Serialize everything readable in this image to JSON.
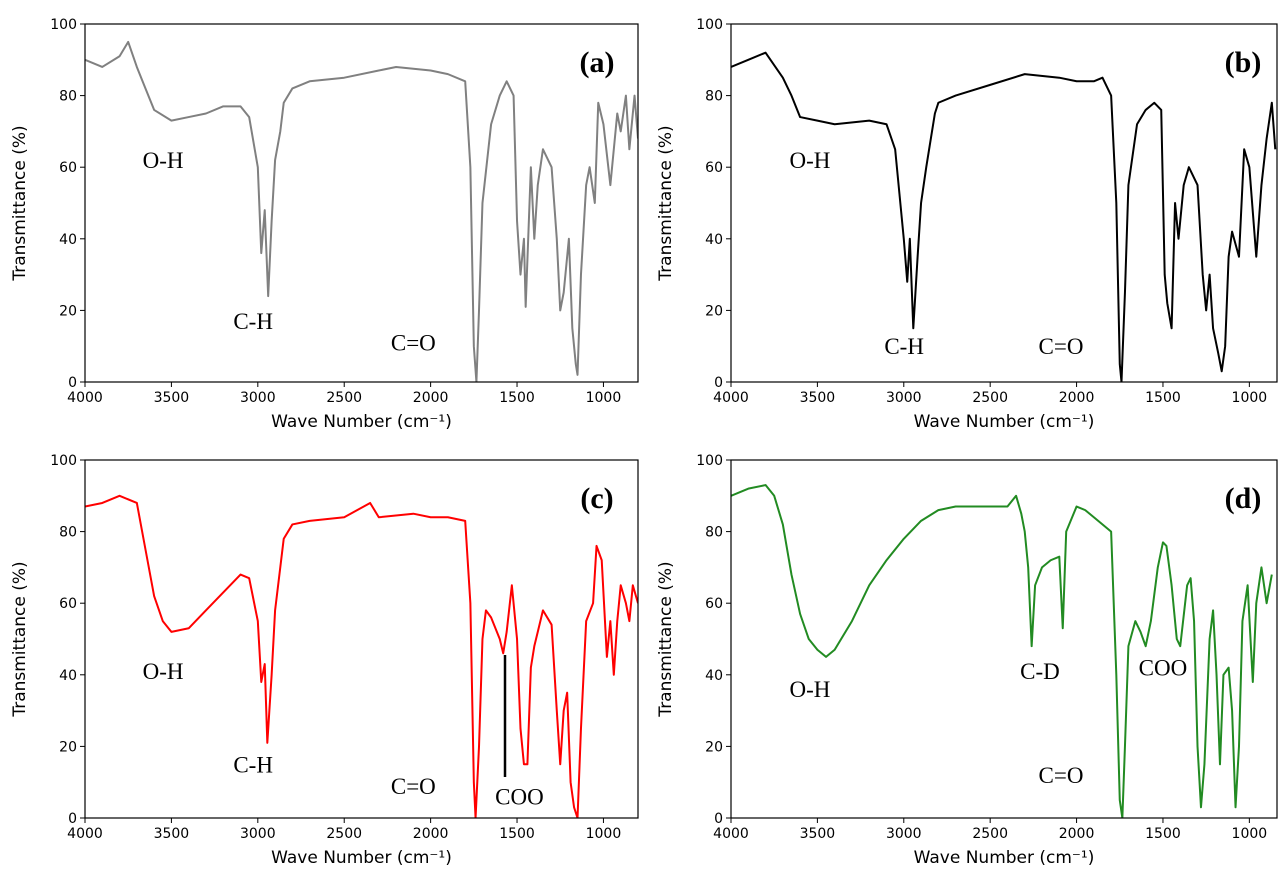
{
  "chart_data": [
    {
      "type": "line",
      "panel_label": "(a)",
      "xlabel": "Wave Number (cm⁻¹)",
      "ylabel": "Transmittance (%)",
      "color": "#808080",
      "xlim": [
        4000,
        800
      ],
      "ylim": [
        0,
        100
      ],
      "xticks": [
        4000,
        3500,
        3000,
        2500,
        2000,
        1500,
        1000
      ],
      "yticks": [
        0,
        20,
        40,
        60,
        80,
        100
      ],
      "x": [
        4000,
        3900,
        3800,
        3750,
        3700,
        3650,
        3600,
        3500,
        3400,
        3300,
        3200,
        3100,
        3050,
        3000,
        2980,
        2960,
        2940,
        2920,
        2900,
        2870,
        2850,
        2800,
        2700,
        2500,
        2300,
        2200,
        2000,
        1900,
        1800,
        1770,
        1750,
        1735,
        1720,
        1700,
        1650,
        1600,
        1560,
        1520,
        1500,
        1480,
        1460,
        1450,
        1420,
        1400,
        1380,
        1350,
        1300,
        1270,
        1250,
        1230,
        1200,
        1180,
        1160,
        1150,
        1130,
        1100,
        1080,
        1050,
        1030,
        1000,
        960,
        920,
        900,
        870,
        850,
        820,
        800
      ],
      "values": [
        90,
        88,
        91,
        95,
        88,
        82,
        76,
        73,
        74,
        75,
        77,
        77,
        74,
        60,
        36,
        48,
        24,
        45,
        62,
        70,
        78,
        82,
        84,
        85,
        87,
        88,
        87,
        86,
        84,
        60,
        10,
        0,
        20,
        50,
        72,
        80,
        84,
        80,
        45,
        30,
        40,
        21,
        60,
        40,
        55,
        65,
        60,
        40,
        20,
        25,
        40,
        15,
        5,
        2,
        30,
        55,
        60,
        50,
        78,
        72,
        55,
        75,
        70,
        80,
        65,
        80,
        68
      ],
      "annotations": [
        {
          "text": "O-H",
          "x": 3548,
          "y": 62
        },
        {
          "text": "C-H",
          "x": 3027,
          "y": 17
        },
        {
          "text": "C=O",
          "x": 2100,
          "y": 11
        }
      ]
    },
    {
      "type": "line",
      "panel_label": "(b)",
      "xlabel": "Wave Number (cm⁻¹)",
      "ylabel": "Transmittance (%)",
      "color": "#000000",
      "xlim": [
        4000,
        840
      ],
      "ylim": [
        0,
        100
      ],
      "xticks": [
        4000,
        3500,
        3000,
        2500,
        2000,
        1500,
        1000
      ],
      "yticks": [
        0,
        20,
        40,
        60,
        80,
        100
      ],
      "x": [
        4000,
        3900,
        3800,
        3700,
        3650,
        3600,
        3500,
        3400,
        3200,
        3100,
        3050,
        3000,
        2980,
        2965,
        2945,
        2920,
        2900,
        2870,
        2850,
        2820,
        2800,
        2700,
        2500,
        2300,
        2100,
        2000,
        1900,
        1850,
        1800,
        1770,
        1750,
        1740,
        1720,
        1700,
        1650,
        1600,
        1550,
        1510,
        1490,
        1475,
        1450,
        1430,
        1410,
        1380,
        1350,
        1300,
        1270,
        1250,
        1230,
        1210,
        1180,
        1160,
        1140,
        1120,
        1100,
        1060,
        1030,
        1000,
        960,
        930,
        900,
        870,
        850
      ],
      "values": [
        88,
        90,
        92,
        85,
        80,
        74,
        73,
        72,
        73,
        72,
        65,
        40,
        28,
        40,
        15,
        35,
        50,
        60,
        66,
        75,
        78,
        80,
        83,
        86,
        85,
        84,
        84,
        85,
        80,
        50,
        5,
        0,
        25,
        55,
        72,
        76,
        78,
        76,
        30,
        22,
        15,
        50,
        40,
        55,
        60,
        55,
        30,
        20,
        30,
        15,
        8,
        3,
        10,
        35,
        42,
        35,
        65,
        60,
        35,
        55,
        68,
        78,
        65
      ],
      "annotations": [
        {
          "text": "O-H",
          "x": 3543,
          "y": 62
        },
        {
          "text": "C-H",
          "x": 2998,
          "y": 10
        },
        {
          "text": "C=O",
          "x": 2090,
          "y": 10
        }
      ]
    },
    {
      "type": "line",
      "panel_label": "(c)",
      "xlabel": "Wave Number (cm⁻¹)",
      "ylabel": "Transmittance (%)",
      "color": "#ff0000",
      "xlim": [
        4000,
        800
      ],
      "ylim": [
        0,
        100
      ],
      "xticks": [
        4000,
        3500,
        3000,
        2500,
        2000,
        1500,
        1000
      ],
      "yticks": [
        0,
        20,
        40,
        60,
        80,
        100
      ],
      "x": [
        4000,
        3900,
        3800,
        3700,
        3650,
        3600,
        3550,
        3500,
        3400,
        3300,
        3200,
        3100,
        3050,
        3000,
        2980,
        2960,
        2945,
        2920,
        2900,
        2870,
        2850,
        2800,
        2700,
        2500,
        2350,
        2300,
        2100,
        2000,
        1900,
        1800,
        1770,
        1750,
        1740,
        1720,
        1700,
        1680,
        1650,
        1600,
        1580,
        1560,
        1530,
        1500,
        1480,
        1460,
        1440,
        1420,
        1400,
        1380,
        1350,
        1300,
        1270,
        1250,
        1230,
        1210,
        1190,
        1170,
        1150,
        1130,
        1100,
        1060,
        1040,
        1010,
        980,
        960,
        940,
        920,
        900,
        870,
        850,
        830,
        800
      ],
      "values": [
        87,
        88,
        90,
        88,
        75,
        62,
        55,
        52,
        53,
        58,
        63,
        68,
        67,
        55,
        38,
        43,
        21,
        40,
        58,
        70,
        78,
        82,
        83,
        84,
        88,
        84,
        85,
        84,
        84,
        83,
        60,
        10,
        0,
        20,
        50,
        58,
        56,
        50,
        46,
        52,
        65,
        50,
        25,
        15,
        15,
        42,
        48,
        52,
        58,
        54,
        30,
        15,
        30,
        35,
        10,
        3,
        0,
        25,
        55,
        60,
        76,
        72,
        45,
        55,
        40,
        55,
        65,
        60,
        55,
        65,
        60
      ],
      "annotations": [
        {
          "text": "O-H",
          "x": 3548,
          "y": 41
        },
        {
          "text": "C-H",
          "x": 3027,
          "y": 15
        },
        {
          "text": "C=O",
          "x": 2100,
          "y": 9
        },
        {
          "text": "COO",
          "x": 1486,
          "y": 6
        }
      ]
    },
    {
      "type": "line",
      "panel_label": "(d)",
      "xlabel": "Wave Number (cm⁻¹)",
      "ylabel": "Transmittance (%)",
      "color": "#228b22",
      "xlim": [
        4000,
        840
      ],
      "ylim": [
        0,
        100
      ],
      "xticks": [
        4000,
        3500,
        3000,
        2500,
        2000,
        1500,
        1000
      ],
      "yticks": [
        0,
        20,
        40,
        60,
        80,
        100
      ],
      "x": [
        4000,
        3900,
        3800,
        3750,
        3700,
        3650,
        3600,
        3550,
        3500,
        3450,
        3400,
        3300,
        3200,
        3100,
        3000,
        2900,
        2800,
        2700,
        2600,
        2500,
        2400,
        2350,
        2320,
        2300,
        2280,
        2260,
        2240,
        2200,
        2150,
        2100,
        2080,
        2060,
        2000,
        1950,
        1900,
        1800,
        1770,
        1750,
        1735,
        1720,
        1700,
        1660,
        1630,
        1600,
        1570,
        1530,
        1500,
        1480,
        1450,
        1420,
        1400,
        1360,
        1340,
        1320,
        1300,
        1280,
        1260,
        1230,
        1210,
        1190,
        1170,
        1150,
        1120,
        1100,
        1080,
        1060,
        1040,
        1010,
        980,
        960,
        930,
        900,
        870
      ],
      "values": [
        90,
        92,
        93,
        90,
        82,
        68,
        57,
        50,
        47,
        45,
        47,
        55,
        65,
        72,
        78,
        83,
        86,
        87,
        87,
        87,
        87,
        90,
        85,
        80,
        70,
        48,
        65,
        70,
        72,
        73,
        53,
        80,
        87,
        86,
        84,
        80,
        40,
        5,
        0,
        20,
        48,
        55,
        52,
        48,
        55,
        70,
        77,
        76,
        65,
        50,
        48,
        65,
        67,
        55,
        20,
        3,
        15,
        50,
        58,
        40,
        15,
        40,
        42,
        30,
        3,
        20,
        55,
        65,
        38,
        60,
        70,
        60,
        68
      ],
      "annotations": [
        {
          "text": "O-H",
          "x": 3543,
          "y": 36
        },
        {
          "text": "C-D",
          "x": 2212,
          "y": 41
        },
        {
          "text": "COO",
          "x": 1500,
          "y": 42
        },
        {
          "text": "C=O",
          "x": 2090,
          "y": 12
        }
      ]
    }
  ]
}
